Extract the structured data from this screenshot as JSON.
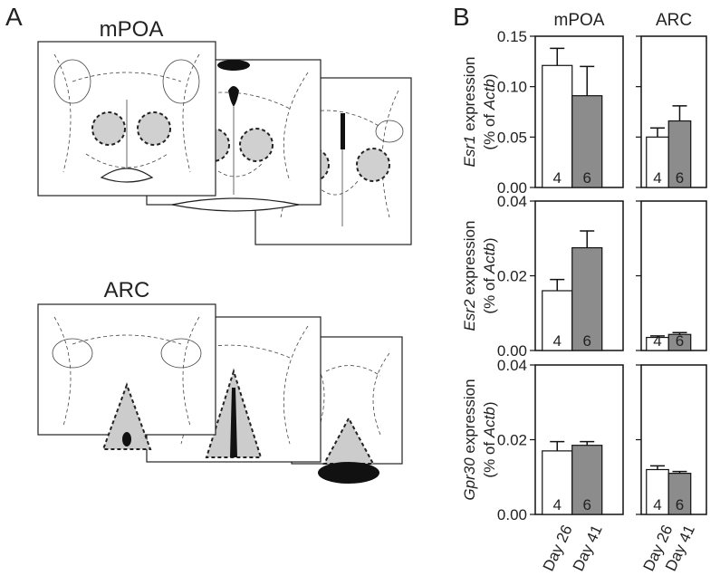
{
  "panel_a": {
    "label": "A",
    "sections": [
      "mPOA",
      "ARC"
    ]
  },
  "panel_b": {
    "label": "B"
  },
  "chart_data": [
    {
      "type": "bar",
      "title": "mPOA",
      "ylabel": [
        "Esr1",
        " expression",
        "(% of ",
        "Actb",
        ")"
      ],
      "categories": [
        null,
        null
      ],
      "values": [
        0.121,
        0.091
      ],
      "errors": [
        0.017,
        0.029
      ],
      "colors": [
        "#ffffff",
        "#8c8c8c"
      ],
      "n": [
        4,
        6
      ],
      "ylim": [
        0,
        0.15
      ],
      "yticks": [
        {
          "value": 0,
          "label": "0.00"
        },
        0.05,
        {
          "value": 0.1,
          "label": "0.10"
        },
        0.15
      ]
    },
    {
      "type": "bar",
      "title": "ARC",
      "categories": [
        null,
        null
      ],
      "values": [
        0.05,
        0.066
      ],
      "errors": [
        0.009,
        0.015
      ],
      "colors": [
        "#ffffff",
        "#8c8c8c"
      ],
      "n": [
        4,
        6
      ],
      "ylim": [
        0,
        0.15
      ],
      "yticks": [
        0,
        0.05,
        0.1,
        0.15
      ]
    },
    {
      "type": "bar",
      "ylabel": [
        "Esr2",
        " expression",
        "(% of ",
        "Actb",
        ")"
      ],
      "categories": [
        null,
        null
      ],
      "values": [
        0.016,
        0.0275
      ],
      "errors": [
        0.003,
        0.0045
      ],
      "colors": [
        "#ffffff",
        "#8c8c8c"
      ],
      "n": [
        4,
        6
      ],
      "ylim": [
        0,
        0.04
      ],
      "yticks": [
        {
          "value": 0,
          "label": "0.00"
        },
        0.02,
        0.04
      ]
    },
    {
      "type": "bar",
      "categories": [
        null,
        null
      ],
      "values": [
        0.0035,
        0.0043
      ],
      "errors": [
        0.0004,
        0.0005
      ],
      "colors": [
        "#ffffff",
        "#8c8c8c"
      ],
      "n": [
        4,
        6
      ],
      "ylim": [
        0,
        0.04
      ],
      "yticks": [
        0,
        0.02,
        0.04
      ]
    },
    {
      "type": "bar",
      "ylabel": [
        "Gpr30",
        " expression",
        "(% of ",
        "Actb",
        ")"
      ],
      "categories": [
        "Day 26",
        "Day 41"
      ],
      "values": [
        0.017,
        0.0185
      ],
      "errors": [
        0.0025,
        0.001
      ],
      "colors": [
        "#ffffff",
        "#8c8c8c"
      ],
      "n": [
        4,
        6
      ],
      "ylim": [
        0,
        0.04
      ],
      "yticks": [
        {
          "value": 0,
          "label": "0.00"
        },
        0.02,
        0.04
      ]
    },
    {
      "type": "bar",
      "categories": [
        "Day 26",
        "Day 41"
      ],
      "values": [
        0.012,
        0.011
      ],
      "errors": [
        0.001,
        0.0005
      ],
      "colors": [
        "#ffffff",
        "#8c8c8c"
      ],
      "n": [
        4,
        6
      ],
      "ylim": [
        0,
        0.04
      ],
      "yticks": [
        0,
        0.02,
        0.04
      ]
    }
  ]
}
